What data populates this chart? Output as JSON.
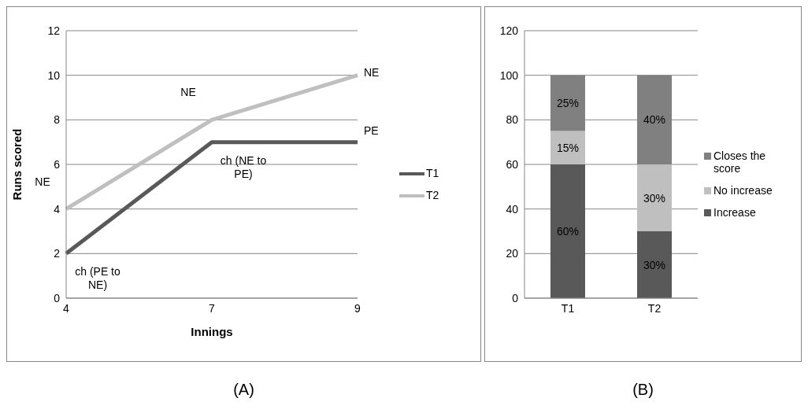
{
  "chart_data": [
    {
      "type": "line",
      "title": "(A)",
      "xlabel": "Innings",
      "ylabel": "Runs scored",
      "categories": [
        "4",
        "7",
        "9"
      ],
      "series": [
        {
          "name": "T1",
          "color": "#595959",
          "values": [
            2,
            7,
            7
          ]
        },
        {
          "name": "T2",
          "color": "#bfbfbf",
          "values": [
            4,
            8,
            10
          ]
        }
      ],
      "ylim": [
        0,
        12
      ],
      "yticks": [
        0,
        2,
        4,
        6,
        8,
        10,
        12
      ],
      "grid": "y",
      "legend": "right",
      "marker": "none",
      "annotations": [
        {
          "text": "NE",
          "x": "4",
          "y": 4
        },
        {
          "text": "NE",
          "x": "7",
          "y": 8
        },
        {
          "text": "NE",
          "x": "9",
          "y": 10
        },
        {
          "text": "PE",
          "x": "9",
          "y": 7
        },
        {
          "text": "ch (NE to PE)",
          "x": "7",
          "y": 7
        },
        {
          "text": "ch (PE to NE)",
          "x": "4",
          "y": 2
        }
      ]
    },
    {
      "type": "bar",
      "title": "(B)",
      "stacked": true,
      "categories": [
        "T1",
        "T2"
      ],
      "series": [
        {
          "name": "Increase",
          "color": "#595959",
          "values": [
            60,
            30
          ],
          "value_labels": [
            "60%",
            "30%"
          ]
        },
        {
          "name": "No increase",
          "color": "#bfbfbf",
          "values": [
            15,
            30
          ],
          "value_labels": [
            "15%",
            "30%"
          ]
        },
        {
          "name": "Closes the score",
          "color": "#808080",
          "values": [
            25,
            40
          ],
          "value_labels": [
            "25%",
            "40%"
          ]
        }
      ],
      "ylim": [
        0,
        120
      ],
      "yticks": [
        0,
        20,
        40,
        60,
        80,
        100,
        120
      ],
      "grid": "y",
      "legend": "right"
    }
  ]
}
